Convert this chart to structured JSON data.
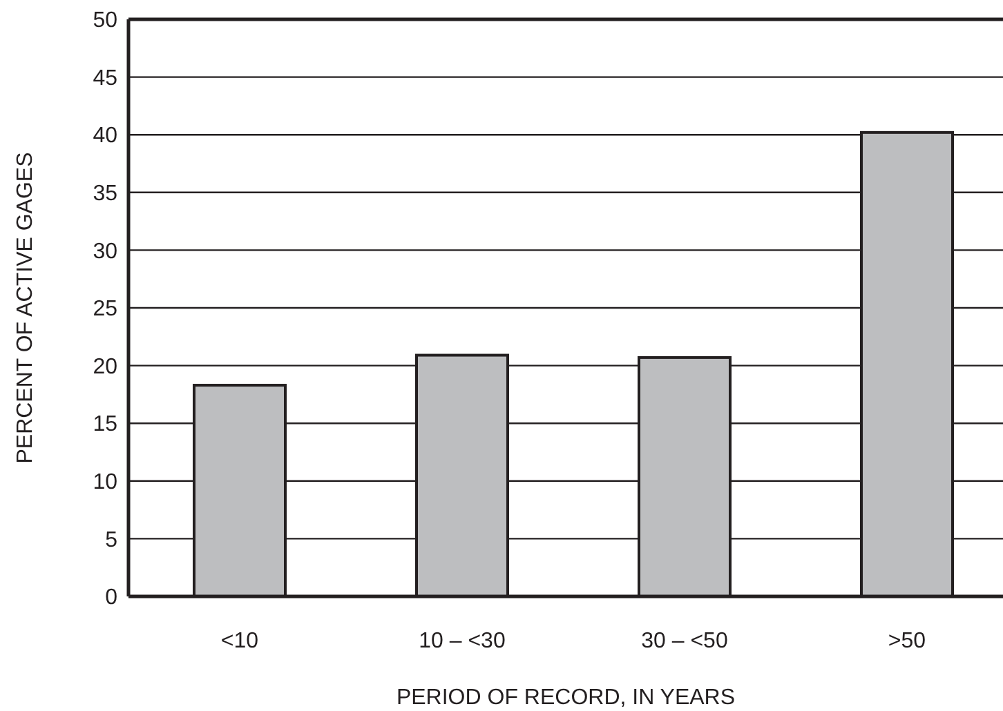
{
  "chart_data": {
    "type": "bar",
    "xlabel": "PERIOD OF RECORD, IN YEARS",
    "ylabel": "PERCENT OF ACTIVE GAGES",
    "categories": [
      "<10",
      "10 – <30",
      "30 – <50",
      ">50"
    ],
    "values": [
      18.3,
      20.9,
      20.7,
      40.2
    ],
    "color": "#bdbec0",
    "ylim": [
      0,
      50
    ],
    "yticks": [
      0,
      5,
      10,
      15,
      20,
      25,
      30,
      35,
      40,
      45,
      50
    ],
    "grid": "y"
  }
}
